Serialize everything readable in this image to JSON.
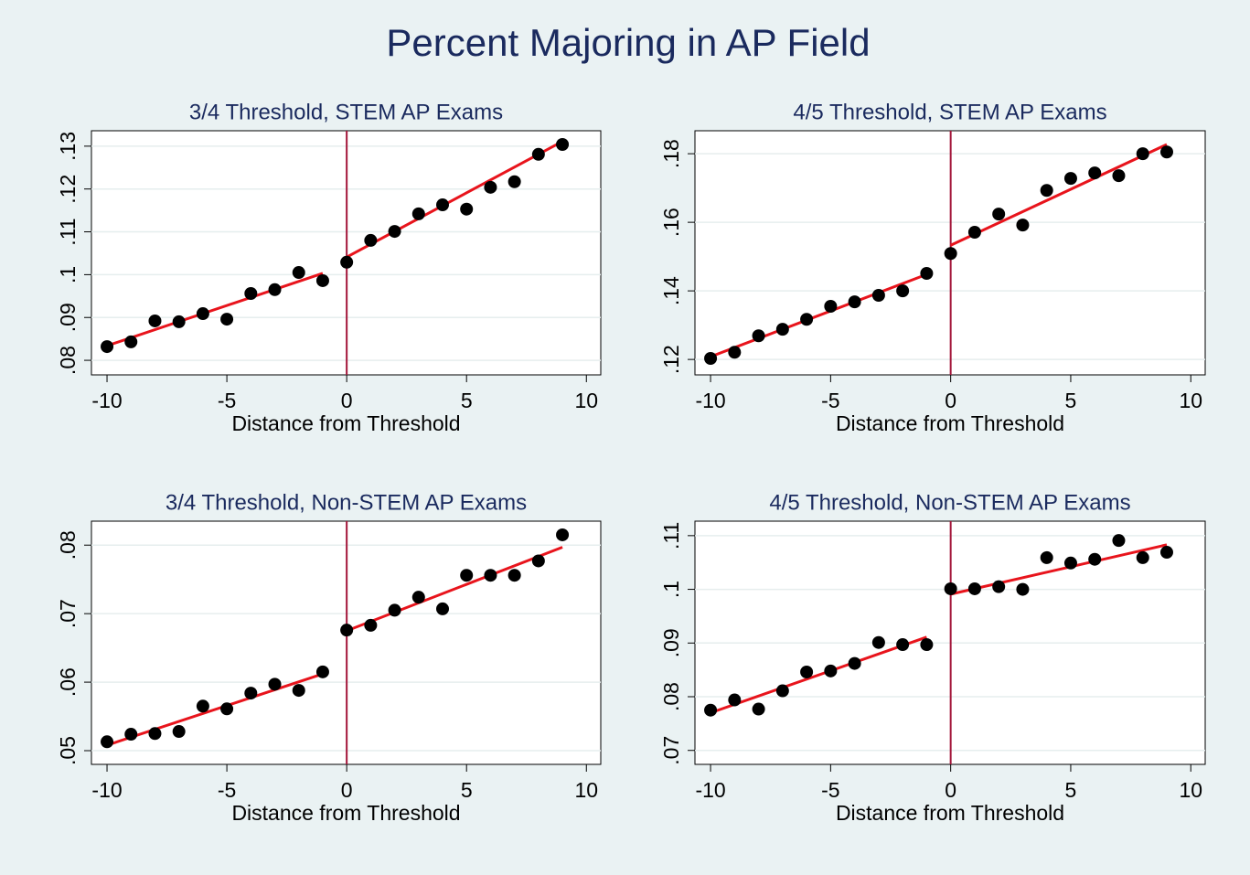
{
  "title": "Percent Majoring in AP Field",
  "chart_data": [
    {
      "type": "scatter",
      "title": "3/4 Threshold, STEM AP Exams",
      "x_label": "Distance from Threshold",
      "x": [
        -10,
        -9,
        -8,
        -7,
        -6,
        -5,
        -4,
        -3,
        -2,
        -1,
        0,
        1,
        2,
        3,
        4,
        5,
        6,
        7,
        8,
        9
      ],
      "values": [
        0.0832,
        0.0843,
        0.0892,
        0.089,
        0.0909,
        0.0896,
        0.0956,
        0.0965,
        0.1005,
        0.0986,
        0.1029,
        0.108,
        0.1101,
        0.1142,
        0.1163,
        0.1153,
        0.1204,
        0.1217,
        0.1281,
        0.1304
      ],
      "color": "#000000",
      "fit_lines": [
        {
          "x": [
            -10,
            -1
          ],
          "values": [
            0.0834,
            0.1003
          ]
        },
        {
          "x": [
            0,
            9
          ],
          "values": [
            0.1041,
            0.1311
          ]
        }
      ],
      "fit_color": "#e8141c",
      "vline": 0,
      "vline_color": "#a3163a",
      "xlim": [
        -10.65,
        10.6
      ],
      "xticks": [
        -10,
        -5,
        0,
        5,
        10
      ],
      "ylim": [
        0.0766,
        0.1336
      ],
      "yticks": [
        {
          "value": 0.08,
          "label": ".08"
        },
        {
          "value": 0.09,
          "label": ".09"
        },
        {
          "value": 0.1,
          "label": ".1"
        },
        {
          "value": 0.11,
          "label": ".11"
        },
        {
          "value": 0.12,
          "label": ".12"
        },
        {
          "value": 0.13,
          "label": ".13"
        }
      ],
      "grid": true
    },
    {
      "type": "scatter",
      "title": "4/5 Threshold, STEM AP Exams",
      "x_label": "Distance from Threshold",
      "x": [
        -10,
        -9,
        -8,
        -7,
        -6,
        -5,
        -4,
        -3,
        -2,
        -1,
        0,
        1,
        2,
        3,
        4,
        5,
        6,
        7,
        8,
        9
      ],
      "values": [
        0.1203,
        0.1221,
        0.1269,
        0.1288,
        0.1317,
        0.1355,
        0.1368,
        0.1387,
        0.14,
        0.1451,
        0.1509,
        0.1571,
        0.1624,
        0.1592,
        0.1693,
        0.1728,
        0.1744,
        0.1736,
        0.18,
        0.1805
      ],
      "color": "#000000",
      "fit_lines": [
        {
          "x": [
            -10,
            -1
          ],
          "values": [
            0.1208,
            0.1448
          ]
        },
        {
          "x": [
            0,
            9
          ],
          "values": [
            0.1533,
            0.1827
          ]
        }
      ],
      "fit_color": "#e8141c",
      "vline": 0,
      "vline_color": "#a3163a",
      "xlim": [
        -10.65,
        10.6
      ],
      "xticks": [
        -10,
        -5,
        0,
        5,
        10
      ],
      "ylim": [
        0.1155,
        0.1867
      ],
      "yticks": [
        {
          "value": 0.12,
          "label": ".12"
        },
        {
          "value": 0.14,
          "label": ".14"
        },
        {
          "value": 0.16,
          "label": ".16"
        },
        {
          "value": 0.18,
          "label": ".18"
        }
      ],
      "grid": true
    },
    {
      "type": "scatter",
      "title": "3/4 Threshold, Non-STEM AP Exams",
      "x_label": "Distance from Threshold",
      "x": [
        -10,
        -9,
        -8,
        -7,
        -6,
        -5,
        -4,
        -3,
        -2,
        -1,
        0,
        1,
        2,
        3,
        4,
        5,
        6,
        7,
        8,
        9
      ],
      "values": [
        0.0513,
        0.0524,
        0.0525,
        0.0528,
        0.0565,
        0.0561,
        0.0584,
        0.0597,
        0.0588,
        0.0615,
        0.0676,
        0.0683,
        0.0705,
        0.0724,
        0.0707,
        0.0756,
        0.0756,
        0.0756,
        0.0777,
        0.0815
      ],
      "color": "#000000",
      "fit_lines": [
        {
          "x": [
            -10,
            -1
          ],
          "values": [
            0.0508,
            0.0612
          ]
        },
        {
          "x": [
            0,
            9
          ],
          "values": [
            0.0675,
            0.0797
          ]
        }
      ],
      "fit_color": "#e8141c",
      "vline": 0,
      "vline_color": "#a3163a",
      "xlim": [
        -10.65,
        10.6
      ],
      "xticks": [
        -10,
        -5,
        0,
        5,
        10
      ],
      "ylim": [
        0.048,
        0.0835
      ],
      "yticks": [
        {
          "value": 0.05,
          "label": ".05"
        },
        {
          "value": 0.06,
          "label": ".06"
        },
        {
          "value": 0.07,
          "label": ".07"
        },
        {
          "value": 0.08,
          "label": ".08"
        }
      ],
      "grid": true
    },
    {
      "type": "scatter",
      "title": "4/5 Threshold, Non-STEM AP Exams",
      "x_label": "Distance from Threshold",
      "x": [
        -10,
        -9,
        -8,
        -7,
        -6,
        -5,
        -4,
        -3,
        -2,
        -1,
        0,
        1,
        2,
        3,
        4,
        5,
        6,
        7,
        8,
        9
      ],
      "values": [
        0.0775,
        0.0794,
        0.0777,
        0.0811,
        0.0846,
        0.0848,
        0.0862,
        0.0901,
        0.0897,
        0.0897,
        0.1001,
        0.1001,
        0.1005,
        0.1,
        0.1059,
        0.1049,
        0.1056,
        0.1091,
        0.1059,
        0.1069
      ],
      "color": "#000000",
      "fit_lines": [
        {
          "x": [
            -10,
            -1
          ],
          "values": [
            0.077,
            0.0911
          ]
        },
        {
          "x": [
            0,
            9
          ],
          "values": [
            0.0991,
            0.1083
          ]
        }
      ],
      "fit_color": "#e8141c",
      "vline": 0,
      "vline_color": "#a3163a",
      "xlim": [
        -10.65,
        10.6
      ],
      "xticks": [
        -10,
        -5,
        0,
        5,
        10
      ],
      "ylim": [
        0.0674,
        0.1127
      ],
      "yticks": [
        {
          "value": 0.07,
          "label": ".07"
        },
        {
          "value": 0.08,
          "label": ".08"
        },
        {
          "value": 0.09,
          "label": ".09"
        },
        {
          "value": 0.1,
          "label": ".1"
        },
        {
          "value": 0.11,
          "label": ".11"
        }
      ],
      "grid": true
    }
  ]
}
